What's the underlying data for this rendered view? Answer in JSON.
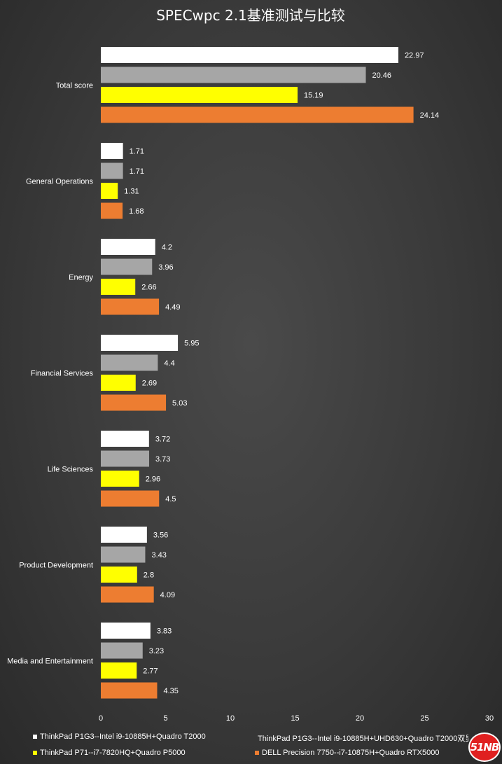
{
  "chart_data": {
    "type": "bar",
    "orientation": "horizontal",
    "title": "SPECwpc 2.1基准测试与比较",
    "categories": [
      "Total score",
      "General Operations",
      "Energy",
      "Financial Services",
      "Life Sciences",
      "Product Development",
      "Media and Entertainment"
    ],
    "series": [
      {
        "name": "ThinkPad P1G3--Intel i9-10885H+Quadro T2000",
        "color": "#ffffff",
        "values": [
          22.97,
          1.71,
          4.2,
          5.95,
          3.72,
          3.56,
          3.83
        ]
      },
      {
        "name": "ThinkPad P1G3--Intel i9-10885H+UHD630+Quadro T2000双显",
        "color": "#a6a6a6",
        "values": [
          20.46,
          1.71,
          3.96,
          4.4,
          3.73,
          3.43,
          3.23
        ]
      },
      {
        "name": "ThinkPad P71--i7-7820HQ+Quadro P5000",
        "color": "#ffff00",
        "values": [
          15.19,
          1.31,
          2.66,
          2.69,
          2.96,
          2.8,
          2.77
        ]
      },
      {
        "name": "DELL Precision 7750--i7-10875H+Quadro RTX5000",
        "color": "#ed7d31",
        "values": [
          24.14,
          1.68,
          4.49,
          5.03,
          4.5,
          4.09,
          4.35
        ]
      }
    ],
    "value_labels": [
      [
        "22.97",
        "1.71",
        "4.2",
        "5.95",
        "3.72",
        "3.56",
        "3.83"
      ],
      [
        "20.46",
        "1.71",
        "3.96",
        "4.4",
        "3.73",
        "3.43",
        "3.23"
      ],
      [
        "15.19",
        "1.31",
        "2.66",
        "2.69",
        "2.96",
        "2.8",
        "2.77"
      ],
      [
        "24.14",
        "1.68",
        "4.49",
        "5.03",
        "4.5",
        "4.09",
        "4.35"
      ]
    ],
    "xlim": [
      0,
      30
    ],
    "xticks": [
      "0",
      "5",
      "10",
      "15",
      "20",
      "25",
      "30"
    ],
    "grid": false,
    "legend_position": "bottom"
  },
  "logo": {
    "text": "51NB"
  }
}
